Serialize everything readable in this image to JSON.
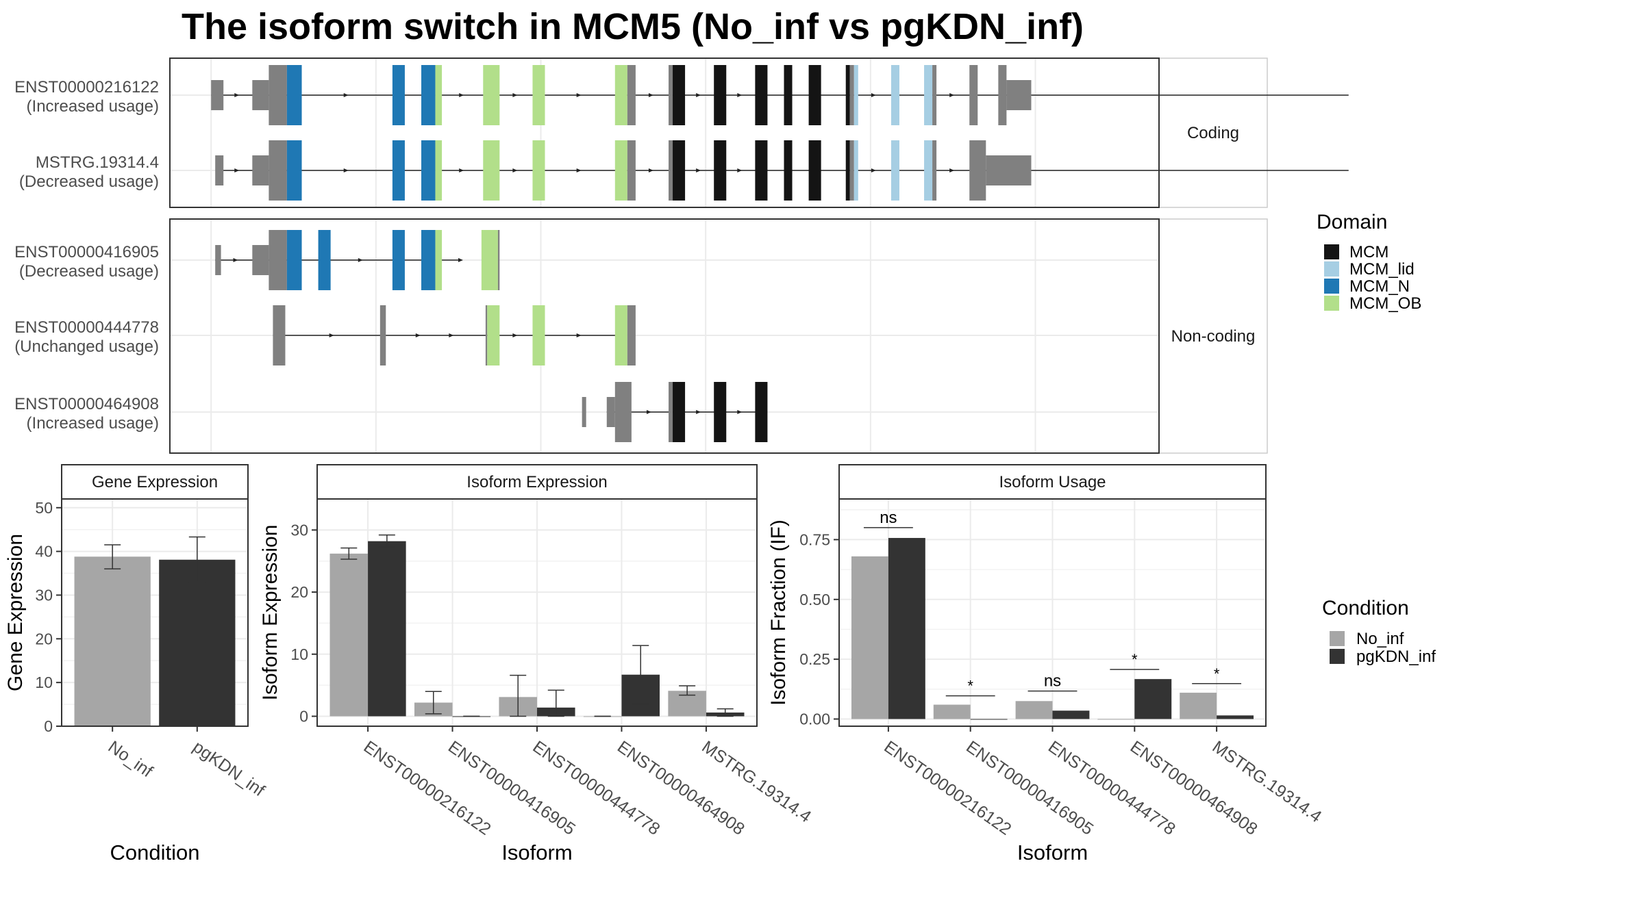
{
  "title": "The isoform switch in MCM5 (No_inf vs pgKDN_inf)",
  "colors": {
    "MCM": "#141414",
    "MCM_lid": "#a6cee3",
    "MCM_N": "#1f78b4",
    "MCM_OB": "#b2df8a",
    "utr": "#808080",
    "No_inf": "#a6a6a6",
    "pgKDN_inf": "#333333"
  },
  "transcripts": {
    "facets": [
      {
        "label": "Coding",
        "rows": [
          {
            "id": "ENST00000216122",
            "usage": "(Increased usage)",
            "line": [
              0.5,
              14.3
            ],
            "exons": [
              [
                0.5,
                0.65,
                "utr",
                "s"
              ],
              [
                1.0,
                1.2,
                "utr",
                "s"
              ],
              [
                1.2,
                1.42,
                "utr",
                "t"
              ],
              [
                1.42,
                1.6,
                "MCM_N",
                "t"
              ],
              [
                2.7,
                2.85,
                "MCM_N",
                "t"
              ],
              [
                3.05,
                3.22,
                "MCM_N",
                "t"
              ],
              [
                3.22,
                3.3,
                "MCM_OB",
                "t"
              ],
              [
                3.8,
                4.0,
                "MCM_OB",
                "t"
              ],
              [
                4.4,
                4.55,
                "MCM_OB",
                "t"
              ],
              [
                5.4,
                5.55,
                "MCM_OB",
                "t"
              ],
              [
                5.55,
                5.65,
                "utr",
                "t"
              ],
              [
                6.05,
                6.1,
                "utr",
                "t"
              ],
              [
                6.1,
                6.25,
                "MCM",
                "t"
              ],
              [
                6.6,
                6.75,
                "MCM",
                "t"
              ],
              [
                7.1,
                7.25,
                "MCM",
                "t"
              ],
              [
                7.45,
                7.55,
                "MCM",
                "t"
              ],
              [
                7.75,
                7.9,
                "MCM",
                "t"
              ],
              [
                8.2,
                8.25,
                "MCM",
                "t"
              ],
              [
                8.25,
                8.3,
                "utr",
                "t"
              ],
              [
                8.3,
                8.35,
                "MCM_lid",
                "t"
              ],
              [
                8.75,
                8.85,
                "MCM_lid",
                "t"
              ],
              [
                9.15,
                9.25,
                "MCM_lid",
                "t"
              ],
              [
                9.25,
                9.3,
                "utr",
                "t"
              ],
              [
                9.7,
                9.8,
                "utr",
                "t"
              ],
              [
                10.05,
                10.15,
                "utr",
                "t"
              ],
              [
                10.15,
                10.45,
                "utr",
                "s"
              ]
            ]
          },
          {
            "id": "MSTRG.19314.4",
            "usage": "(Decreased usage)",
            "line": [
              0.6,
              14.3
            ],
            "exons": [
              [
                0.55,
                0.65,
                "utr",
                "s"
              ],
              [
                1.0,
                1.2,
                "utr",
                "s"
              ],
              [
                1.2,
                1.42,
                "utr",
                "t"
              ],
              [
                1.42,
                1.6,
                "MCM_N",
                "t"
              ],
              [
                2.7,
                2.85,
                "MCM_N",
                "t"
              ],
              [
                3.05,
                3.22,
                "MCM_N",
                "t"
              ],
              [
                3.22,
                3.3,
                "MCM_OB",
                "t"
              ],
              [
                3.8,
                4.0,
                "MCM_OB",
                "t"
              ],
              [
                4.4,
                4.55,
                "MCM_OB",
                "t"
              ],
              [
                5.4,
                5.55,
                "MCM_OB",
                "t"
              ],
              [
                5.55,
                5.65,
                "utr",
                "t"
              ],
              [
                6.05,
                6.1,
                "utr",
                "t"
              ],
              [
                6.1,
                6.25,
                "MCM",
                "t"
              ],
              [
                6.6,
                6.75,
                "MCM",
                "t"
              ],
              [
                7.1,
                7.25,
                "MCM",
                "t"
              ],
              [
                7.45,
                7.55,
                "MCM",
                "t"
              ],
              [
                7.75,
                7.9,
                "MCM",
                "t"
              ],
              [
                8.2,
                8.25,
                "MCM",
                "t"
              ],
              [
                8.25,
                8.3,
                "utr",
                "t"
              ],
              [
                8.3,
                8.35,
                "MCM_lid",
                "t"
              ],
              [
                8.75,
                8.85,
                "MCM_lid",
                "t"
              ],
              [
                9.15,
                9.25,
                "MCM_lid",
                "t"
              ],
              [
                9.25,
                9.3,
                "utr",
                "t"
              ],
              [
                9.7,
                9.9,
                "utr",
                "t"
              ],
              [
                9.9,
                10.45,
                "utr",
                "s"
              ]
            ]
          }
        ]
      },
      {
        "label": "Non-coding",
        "rows": [
          {
            "id": "ENST00000416905",
            "usage": "(Decreased usage)",
            "line": [
              0.55,
              3.5
            ],
            "exons": [
              [
                0.55,
                0.62,
                "utr",
                "s"
              ],
              [
                1.0,
                1.2,
                "utr",
                "s"
              ],
              [
                1.2,
                1.42,
                "utr",
                "t"
              ],
              [
                1.42,
                1.6,
                "MCM_N",
                "t"
              ],
              [
                1.8,
                1.95,
                "MCM_N",
                "t"
              ],
              [
                2.7,
                2.85,
                "MCM_N",
                "t"
              ],
              [
                3.05,
                3.22,
                "MCM_N",
                "t"
              ],
              [
                3.22,
                3.3,
                "MCM_OB",
                "t"
              ],
              [
                3.78,
                3.98,
                "MCM_OB",
                "t"
              ],
              [
                3.98,
                4.0,
                "utr",
                "t"
              ]
            ]
          },
          {
            "id": "ENST00000444778",
            "usage": "(Unchanged usage)",
            "line": [
              1.25,
              5.5
            ],
            "exons": [
              [
                1.25,
                1.4,
                "utr",
                "t"
              ],
              [
                2.55,
                2.62,
                "utr",
                "t"
              ],
              [
                3.83,
                3.85,
                "utr",
                "t"
              ],
              [
                3.85,
                4.0,
                "MCM_OB",
                "t"
              ],
              [
                4.4,
                4.55,
                "MCM_OB",
                "t"
              ],
              [
                5.4,
                5.55,
                "MCM_OB",
                "t"
              ],
              [
                5.55,
                5.65,
                "utr",
                "t"
              ]
            ]
          },
          {
            "id": "ENST00000464908",
            "usage": "(Increased usage)",
            "line": [
              5.3,
              7.2
            ],
            "exons": [
              [
                5.0,
                5.05,
                "utr",
                "s"
              ],
              [
                5.3,
                5.4,
                "utr",
                "s"
              ],
              [
                5.4,
                5.6,
                "utr",
                "t"
              ],
              [
                6.05,
                6.1,
                "utr",
                "t"
              ],
              [
                6.1,
                6.25,
                "MCM",
                "t"
              ],
              [
                6.6,
                6.75,
                "MCM",
                "t"
              ],
              [
                7.1,
                7.25,
                "MCM",
                "t"
              ]
            ]
          }
        ]
      }
    ]
  },
  "legend": {
    "domain_title": "Domain",
    "domains": [
      "MCM",
      "MCM_lid",
      "MCM_N",
      "MCM_OB"
    ],
    "condition_title": "Condition",
    "conditions": [
      "No_inf",
      "pgKDN_inf"
    ]
  },
  "chart_data": [
    {
      "type": "bar",
      "title": "Gene Expression",
      "xlabel": "Condition",
      "ylabel": "Gene Expression",
      "categories": [
        "No_inf",
        "pgKDN_inf"
      ],
      "values": [
        38.8,
        38.1
      ],
      "errors": [
        [
          36.0,
          41.5
        ],
        [
          33.0,
          43.3
        ]
      ],
      "ylim": [
        0,
        52
      ],
      "yticks": [
        "0",
        "10",
        "20",
        "30",
        "40",
        "50"
      ],
      "grid": true
    },
    {
      "type": "bar",
      "title": "Isoform Expression",
      "xlabel": "Isoform",
      "ylabel": "Isoform Expression",
      "categories": [
        "ENST00000216122",
        "ENST00000416905",
        "ENST00000444778",
        "ENST00000464908",
        "MSTRG.19314.4"
      ],
      "series": [
        {
          "name": "No_inf",
          "values": [
            26.2,
            2.2,
            3.1,
            0,
            4.1
          ],
          "errors": [
            [
              25.3,
              27.1
            ],
            [
              0.4,
              4.0
            ],
            [
              0,
              6.6
            ],
            [
              0,
              0
            ],
            [
              3.4,
              4.9
            ]
          ]
        },
        {
          "name": "pgKDN_inf",
          "values": [
            28.2,
            0,
            1.4,
            6.7,
            0.6
          ],
          "errors": [
            [
              27.3,
              29.2
            ],
            [
              0,
              0
            ],
            [
              0,
              4.2
            ],
            [
              2.0,
              11.4
            ],
            [
              0,
              1.2
            ]
          ]
        }
      ],
      "ylim": [
        -1.6,
        35
      ],
      "yticks": [
        "0",
        "10",
        "20",
        "30"
      ],
      "grid": true
    },
    {
      "type": "bar",
      "title": "Isoform Usage",
      "xlabel": "Isoform",
      "ylabel": "Isoform Fraction (IF)",
      "categories": [
        "ENST00000216122",
        "ENST00000416905",
        "ENST00000444778",
        "ENST00000464908",
        "MSTRG.19314.4"
      ],
      "series": [
        {
          "name": "No_inf",
          "values": [
            0.68,
            0.06,
            0.075,
            0,
            0.11
          ]
        },
        {
          "name": "pgKDN_inf",
          "values": [
            0.757,
            0,
            0.035,
            0.167,
            0.015
          ]
        }
      ],
      "significance": [
        "ns",
        "*",
        "ns",
        "*",
        "*"
      ],
      "sig_y": [
        0.8,
        0.097,
        0.117,
        0.207,
        0.148
      ],
      "ylim": [
        -0.03,
        0.92
      ],
      "yticks": [
        "0.00",
        "0.25",
        "0.50",
        "0.75"
      ],
      "grid": true
    }
  ]
}
